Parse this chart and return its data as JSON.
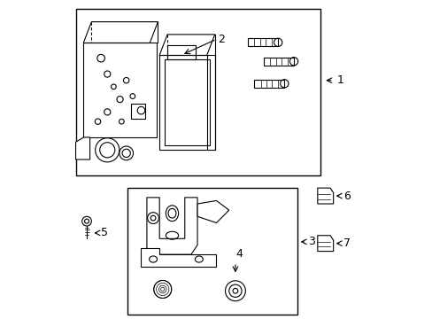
{
  "background_color": "#ffffff",
  "border_color": "#000000",
  "line_color": "#000000",
  "label_color": "#000000",
  "label1": {
    "text": "1"
  },
  "label2": {
    "text": "2"
  },
  "label3": {
    "text": "3"
  },
  "label4": {
    "text": "4"
  },
  "label5": {
    "text": "5"
  },
  "label6": {
    "text": "6"
  },
  "label7": {
    "text": "7"
  }
}
